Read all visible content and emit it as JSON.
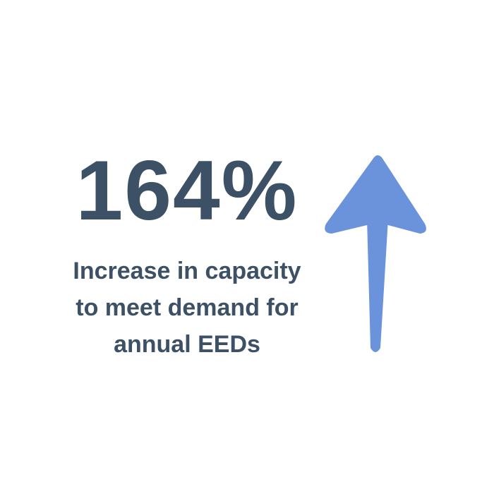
{
  "stat": {
    "value": "164%",
    "caption_lines": [
      "Increase in capacity",
      "to meet demand for",
      "annual EEDs"
    ]
  },
  "icons": {
    "arrow": "arrow-up-icon"
  },
  "colors": {
    "text": "#3d5166",
    "arrow": "#6b93dc",
    "background": "#ffffff"
  }
}
